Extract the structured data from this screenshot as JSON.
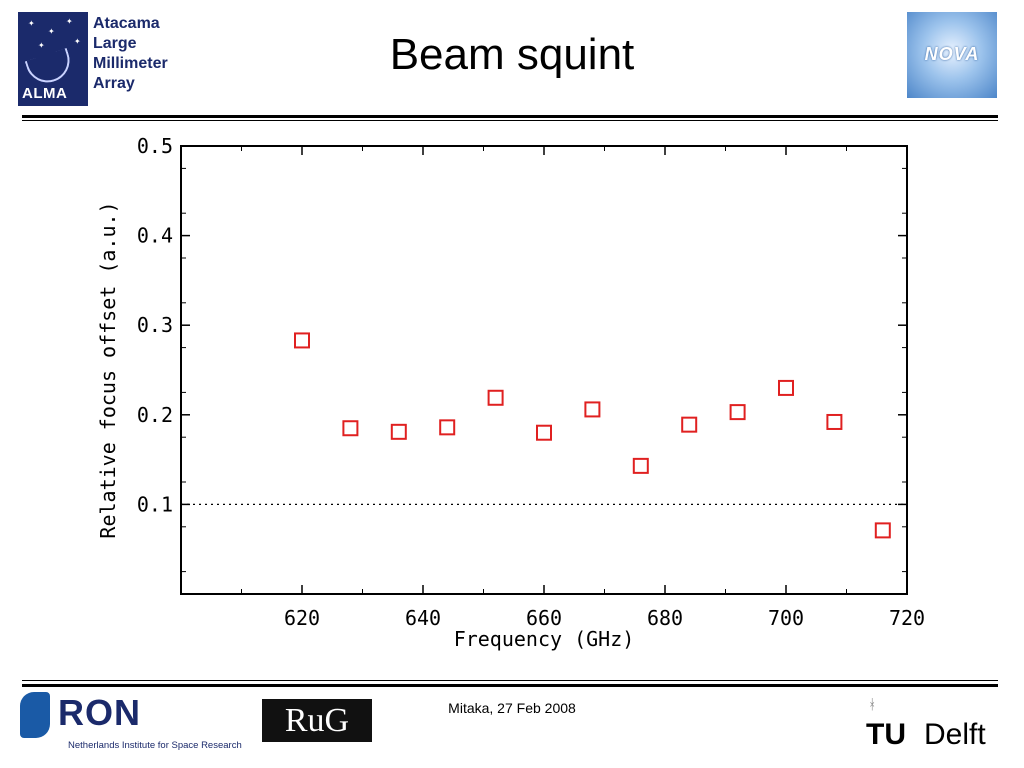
{
  "header": {
    "title": "Beam squint",
    "alma_name_lines": [
      "Atacama",
      "Large",
      "Millimeter",
      "Array"
    ],
    "alma_logo_text": "ALMA",
    "nova_logo_text": "NOVA"
  },
  "footer": {
    "date": "Mitaka, 27 Feb 2008",
    "sron_text": "RON",
    "sron_subtitle": "Netherlands Institute for Space Research",
    "rug_text": "RuG",
    "tudelft_tu": "TU",
    "tudelft_delft": "Delft"
  },
  "chart_data": {
    "type": "scatter",
    "xlabel": "Frequency (GHz)",
    "ylabel": "Relative focus offset (a.u.)",
    "xlim": [
      600,
      720
    ],
    "ylim": [
      0,
      0.5
    ],
    "x_ticks": [
      620,
      640,
      660,
      680,
      700,
      720
    ],
    "y_ticks": [
      0.1,
      0.2,
      0.3,
      0.4,
      0.5
    ],
    "y_tick_labels": [
      "0.1",
      "0.2",
      "0.3",
      "0.4",
      "0.5"
    ],
    "marker": "open-square",
    "marker_color": "#e02020",
    "reference_line": {
      "y": 0.1,
      "style": "dotted"
    },
    "points": [
      {
        "x": 620,
        "y": 0.283
      },
      {
        "x": 628,
        "y": 0.185
      },
      {
        "x": 636,
        "y": 0.181
      },
      {
        "x": 644,
        "y": 0.186
      },
      {
        "x": 652,
        "y": 0.219
      },
      {
        "x": 660,
        "y": 0.18
      },
      {
        "x": 668,
        "y": 0.206
      },
      {
        "x": 676,
        "y": 0.143
      },
      {
        "x": 684,
        "y": 0.189
      },
      {
        "x": 692,
        "y": 0.203
      },
      {
        "x": 700,
        "y": 0.23
      },
      {
        "x": 708,
        "y": 0.192
      },
      {
        "x": 716,
        "y": 0.071
      }
    ]
  }
}
